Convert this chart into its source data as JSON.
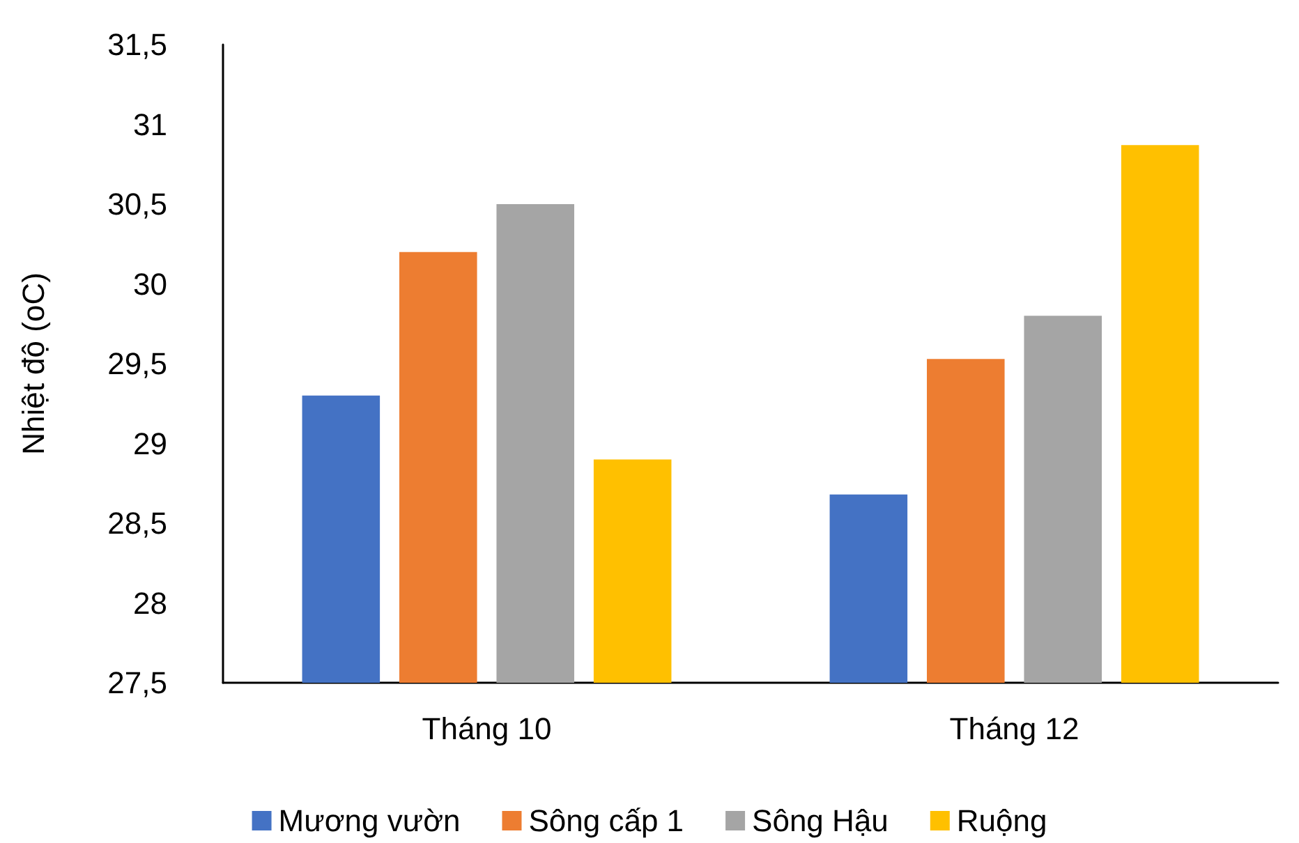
{
  "chart_data": {
    "type": "bar",
    "ylabel": "Nhiệt độ (oC)",
    "categories": [
      "Tháng 10",
      "Tháng 12"
    ],
    "series": [
      {
        "name": "Mương vườn",
        "color": "#4472c4",
        "values": [
          29.3,
          28.68
        ]
      },
      {
        "name": "Sông cấp 1",
        "color": "#ed7d31",
        "values": [
          30.2,
          29.53
        ]
      },
      {
        "name": "Sông Hậu",
        "color": "#a5a5a5",
        "values": [
          30.5,
          29.8
        ]
      },
      {
        "name": "Ruộng",
        "color": "#ffc000",
        "values": [
          28.9,
          30.87
        ]
      }
    ],
    "ylim": [
      27.5,
      31.5
    ],
    "yticks": [
      {
        "value": 27.5,
        "label": "27,5"
      },
      {
        "value": 28,
        "label": "28"
      },
      {
        "value": 28.5,
        "label": "28,5"
      },
      {
        "value": 29,
        "label": "29"
      },
      {
        "value": 29.5,
        "label": "29,5"
      },
      {
        "value": 30,
        "label": "30"
      },
      {
        "value": 30.5,
        "label": "30,5"
      },
      {
        "value": 31,
        "label": "31"
      },
      {
        "value": 31.5,
        "label": "31,5"
      }
    ],
    "grid": false,
    "legend": "bottom"
  }
}
